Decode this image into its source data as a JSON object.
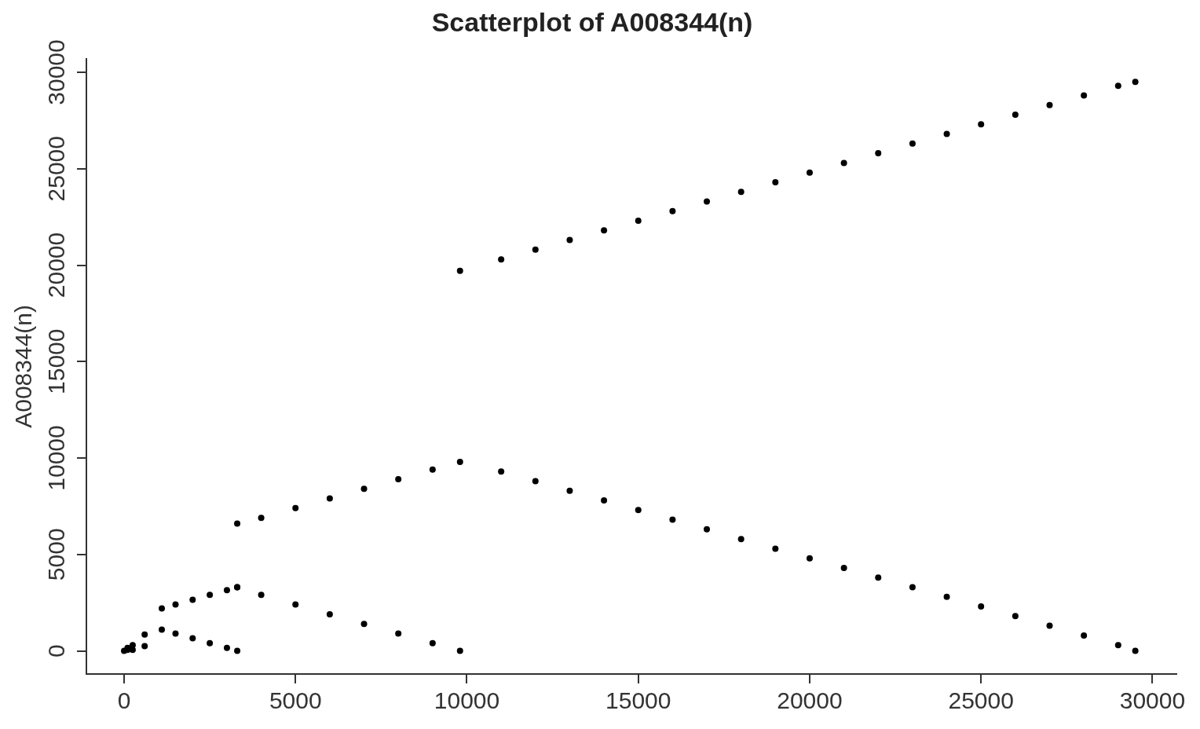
{
  "chart_data": {
    "type": "scatter",
    "title": "Scatterplot of A008344(n)",
    "ylabel": "A008344(n)",
    "marker": "circle",
    "grid": false,
    "legend": false,
    "xlim": [
      -1100,
      30700
    ],
    "ylim": [
      -1200,
      30700
    ],
    "xticks": [
      0,
      5000,
      10000,
      15000,
      20000,
      25000,
      30000
    ],
    "yticks": [
      0,
      5000,
      10000,
      15000,
      20000,
      25000,
      30000
    ],
    "series": [
      {
        "color": "#000000",
        "x": [
          0,
          100,
          100,
          250,
          250,
          600,
          600,
          1100,
          1100,
          1500,
          2000,
          2500,
          3000,
          3300,
          1500,
          2000,
          2500,
          3000,
          3300,
          3300,
          4000,
          5000,
          6000,
          7000,
          8000,
          9000,
          9800,
          3300,
          4000,
          5000,
          6000,
          7000,
          8000,
          9000,
          9800,
          11000,
          12000,
          13000,
          14000,
          15000,
          16000,
          17000,
          18000,
          19000,
          20000,
          21000,
          22000,
          23000,
          24000,
          25000,
          26000,
          27000,
          28000,
          29000,
          29500,
          9800,
          11000,
          12000,
          13000,
          14000,
          15000,
          16000,
          17000,
          18000,
          19000,
          20000,
          21000,
          22000,
          23000,
          24000,
          25000,
          26000,
          27000,
          28000,
          29000,
          29500
        ],
        "values": [
          0,
          150,
          50,
          300,
          50,
          850,
          250,
          2200,
          1100,
          2400,
          2650,
          2900,
          3150,
          3300,
          900,
          650,
          400,
          150,
          0,
          6600,
          6900,
          7400,
          7900,
          8400,
          8900,
          9400,
          9800,
          3300,
          2900,
          2400,
          1900,
          1400,
          900,
          400,
          0,
          20300,
          20800,
          21300,
          21800,
          22300,
          22800,
          23300,
          23800,
          24300,
          24800,
          25300,
          25800,
          26300,
          26800,
          27300,
          27800,
          28300,
          28800,
          29300,
          29500,
          19700,
          9300,
          8800,
          8300,
          7800,
          7300,
          6800,
          6300,
          5800,
          5300,
          4800,
          4300,
          3800,
          3300,
          2800,
          2300,
          1800,
          1300,
          800,
          300,
          0
        ]
      }
    ]
  }
}
